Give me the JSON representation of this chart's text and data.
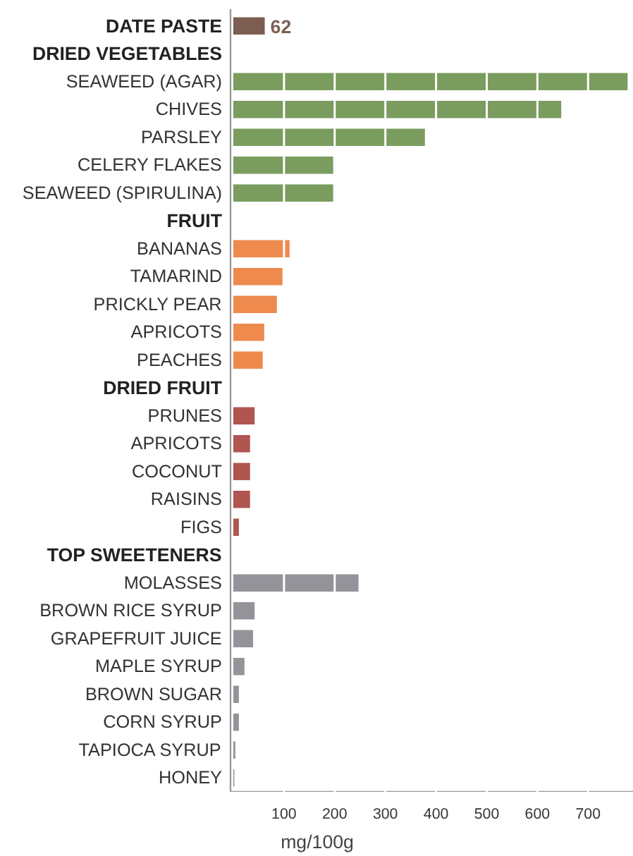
{
  "chart_data": {
    "type": "bar",
    "orientation": "horizontal",
    "xlabel": "mg/100g",
    "xlim": [
      0,
      790
    ],
    "xticks": [
      100,
      200,
      300,
      400,
      500,
      600,
      700
    ],
    "grid": "x",
    "categories": [
      null,
      null,
      "SEAWEED (AGAR)",
      "CHIVES",
      "PARSLEY",
      "CELERY FLAKES",
      "SEAWEED (SPIRULINA)",
      null,
      "BANANAS",
      "TAMARIND",
      "PRICKLY PEAR",
      "APRICOTS",
      "PEACHES",
      null,
      "PRUNES",
      "APRICOTS",
      "COCONUT",
      "RAISINS",
      "FIGS",
      null,
      "MOLASSES",
      "BROWN RICE SYRUP",
      "GRAPEFRUIT JUICE",
      "MAPLE SYRUP",
      "BROWN SUGAR",
      "CORN SYRUP",
      "TAPIOCA SYRUP",
      "HONEY"
    ],
    "series": [
      {
        "name": "DATE PASTE",
        "color": "#7b5e51",
        "values": [
          62,
          null,
          null,
          null,
          null,
          null,
          null,
          null,
          null,
          null,
          null,
          null,
          null,
          null,
          null,
          null,
          null,
          null,
          null,
          null,
          null,
          null,
          null,
          null,
          null,
          null,
          null,
          null
        ],
        "value_labels": [
          "62",
          null,
          null,
          null,
          null,
          null,
          null,
          null,
          null,
          null,
          null,
          null,
          null,
          null,
          null,
          null,
          null,
          null,
          null,
          null,
          null,
          null,
          null,
          null,
          null,
          null,
          null,
          null
        ]
      },
      {
        "name": "DRIED VEGETABLES",
        "color": "#7a9c5e",
        "values": [
          null,
          null,
          778,
          647,
          378,
          197,
          197,
          null,
          null,
          null,
          null,
          null,
          null,
          null,
          null,
          null,
          null,
          null,
          null,
          null,
          null,
          null,
          null,
          null,
          null,
          null,
          null,
          null
        ]
      },
      {
        "name": "FRUIT",
        "color": "#ee8a4e",
        "values": [
          null,
          null,
          null,
          null,
          null,
          null,
          null,
          null,
          111,
          97,
          86,
          61,
          58,
          null,
          null,
          null,
          null,
          null,
          null,
          null,
          null,
          null,
          null,
          null,
          null,
          null,
          null,
          null
        ]
      },
      {
        "name": "DRIED FRUIT",
        "color": "#b05550",
        "values": [
          null,
          null,
          null,
          null,
          null,
          null,
          null,
          null,
          null,
          null,
          null,
          null,
          null,
          null,
          42,
          33,
          33,
          33,
          11,
          null,
          null,
          null,
          null,
          null,
          null,
          null,
          null,
          null
        ]
      },
      {
        "name": "TOP SWEETENERS",
        "color": "#939399",
        "values": [
          null,
          null,
          null,
          null,
          null,
          null,
          null,
          null,
          null,
          null,
          null,
          null,
          null,
          null,
          null,
          null,
          null,
          null,
          null,
          null,
          247,
          42,
          39,
          22,
          11,
          11,
          4,
          2
        ]
      }
    ]
  }
}
